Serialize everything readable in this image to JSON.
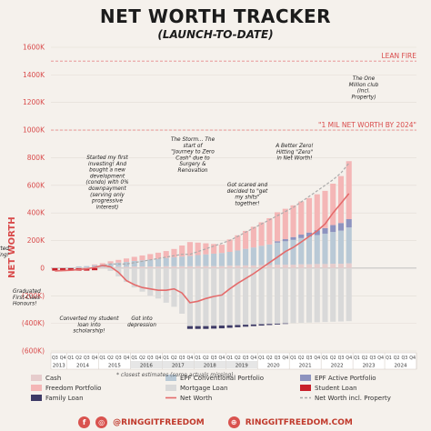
{
  "title": "NET WORTH TRACKER",
  "subtitle": "(LAUNCH-TO-DATE)",
  "footnote": "* closest estimates (some actuals missing)",
  "footer": {
    "handle_left": "@RINGGITFREEDOM",
    "handle_right": "RINGGITFREEDOM.COM"
  },
  "chart_data": {
    "type": "bar",
    "ylabel": "NET WORTH",
    "ylim": [
      -600,
      1600
    ],
    "y_ticks": [
      "(600K)",
      "(400K)",
      "(200K)",
      "0",
      "200K",
      "400K",
      "600K",
      "800K",
      "1000K",
      "1200K",
      "1400K",
      "1600K"
    ],
    "y_tick_values": [
      -600,
      -400,
      -200,
      0,
      200,
      400,
      600,
      800,
      1000,
      1200,
      1400,
      1600
    ],
    "quarters": [
      "Q3",
      "Q4",
      "Q1",
      "Q2",
      "Q3",
      "Q4",
      "Q1",
      "Q2",
      "Q3",
      "Q4",
      "Q1",
      "Q2",
      "Q3",
      "Q4",
      "Q1",
      "Q2",
      "Q3",
      "Q4",
      "Q1",
      "Q2",
      "Q3",
      "Q4",
      "Q1",
      "Q2",
      "Q3",
      "Q4",
      "Q1",
      "Q2",
      "Q3",
      "Q4",
      "Q1",
      "Q2",
      "Q3",
      "Q4",
      "Q1",
      "Q2",
      "Q3",
      "Q4",
      "Q1",
      "Q2",
      "Q3",
      "Q4",
      "Q1",
      "Q2",
      "Q3",
      "Q4"
    ],
    "years": [
      "2013",
      "2014",
      "2015",
      "2016",
      "2017",
      "2018",
      "2019",
      "2020",
      "2021",
      "2022",
      "2023",
      "2024"
    ],
    "year_quarter_counts": [
      2,
      4,
      4,
      4,
      4,
      4,
      4,
      4,
      4,
      4,
      4,
      4
    ],
    "estimate_years": [
      "2016",
      "2017",
      "2018",
      "2019"
    ],
    "reference_lines": [
      {
        "label": "LEAN FIRE",
        "value": 1500
      },
      {
        "label": "\"1 MIL NET WORTH BY 2024\"",
        "value": 1000
      }
    ],
    "series": [
      {
        "name": "Cash",
        "color": "#e6cccc",
        "values": [
          0,
          0,
          0,
          5,
          5,
          8,
          8,
          10,
          10,
          10,
          12,
          12,
          12,
          12,
          14,
          14,
          14,
          14,
          15,
          15,
          15,
          15,
          18,
          18,
          20,
          20,
          22,
          22,
          25,
          25,
          25,
          28,
          28,
          30,
          30,
          32,
          32,
          35,
          null,
          null,
          null,
          null,
          null,
          null,
          null,
          null
        ]
      },
      {
        "name": "Freedom Portfolio",
        "color": "#f4b6b6",
        "values": [
          0,
          0,
          0,
          0,
          0,
          5,
          10,
          15,
          20,
          25,
          30,
          35,
          40,
          45,
          50,
          60,
          80,
          100,
          90,
          80,
          70,
          60,
          90,
          110,
          130,
          150,
          170,
          190,
          210,
          220,
          230,
          240,
          250,
          260,
          270,
          300,
          340,
          420,
          null,
          null,
          null,
          null,
          null,
          null,
          null,
          null
        ]
      },
      {
        "name": "EPF Conventional Portfolio",
        "color": "#b9c9d6",
        "values": [
          0,
          0,
          5,
          8,
          10,
          14,
          18,
          25,
          30,
          35,
          40,
          45,
          50,
          55,
          60,
          65,
          70,
          75,
          80,
          85,
          90,
          95,
          100,
          110,
          120,
          130,
          140,
          150,
          160,
          170,
          180,
          190,
          200,
          210,
          220,
          230,
          240,
          260,
          null,
          null,
          null,
          null,
          null,
          null,
          null,
          null
        ]
      },
      {
        "name": "EPF Active Portfolio",
        "color": "#8d93bf",
        "values": [
          0,
          0,
          0,
          0,
          0,
          0,
          0,
          0,
          0,
          0,
          0,
          0,
          0,
          0,
          0,
          0,
          0,
          0,
          0,
          0,
          0,
          0,
          0,
          0,
          0,
          0,
          0,
          0,
          10,
          15,
          20,
          25,
          30,
          35,
          40,
          50,
          55,
          60,
          null,
          null,
          null,
          null,
          null,
          null,
          null,
          null
        ]
      },
      {
        "name": "Mortgage Loan",
        "color": "#d9d9d9",
        "values": [
          0,
          0,
          0,
          0,
          0,
          0,
          0,
          -20,
          -60,
          -100,
          -140,
          -170,
          -200,
          -220,
          -250,
          -280,
          -330,
          -420,
          -420,
          -420,
          -418,
          -416,
          -414,
          -412,
          -410,
          -408,
          -406,
          -404,
          -402,
          -400,
          -398,
          -396,
          -394,
          -392,
          -390,
          -388,
          -386,
          -384,
          null,
          null,
          null,
          null,
          null,
          null,
          null,
          null
        ]
      },
      {
        "name": "Student Loan",
        "color": "#c8202a",
        "values": [
          -18,
          -18,
          -18,
          -18,
          -18,
          -15,
          0,
          0,
          0,
          0,
          0,
          0,
          0,
          0,
          0,
          0,
          0,
          0,
          0,
          0,
          0,
          0,
          0,
          0,
          0,
          0,
          0,
          0,
          0,
          0,
          0,
          0,
          0,
          0,
          0,
          0,
          0,
          0,
          null,
          null,
          null,
          null,
          null,
          null,
          null,
          null
        ]
      },
      {
        "name": "Family Loan",
        "color": "#3d3a66",
        "values": [
          0,
          0,
          0,
          0,
          0,
          0,
          0,
          0,
          0,
          0,
          0,
          0,
          0,
          0,
          0,
          0,
          0,
          -20,
          -20,
          -20,
          -20,
          -20,
          -18,
          -16,
          -14,
          -12,
          -10,
          -8,
          -6,
          -4,
          0,
          0,
          0,
          0,
          0,
          0,
          0,
          0,
          null,
          null,
          null,
          null,
          null,
          null,
          null,
          null
        ]
      },
      {
        "name": "Net Worth",
        "color": "#e46b6b",
        "values": [
          -20,
          -18,
          -15,
          -10,
          -5,
          5,
          20,
          10,
          -30,
          -90,
          -120,
          -140,
          -150,
          -160,
          -160,
          -150,
          -180,
          -250,
          -240,
          -220,
          -205,
          -195,
          -150,
          -110,
          -75,
          -40,
          0,
          40,
          80,
          120,
          150,
          190,
          230,
          270,
          320,
          400,
          470,
          540,
          null,
          null,
          null,
          null,
          null,
          null,
          null,
          null
        ]
      },
      {
        "name": "Net Worth incl. Property",
        "color": "#aaaaaa",
        "values": [
          -20,
          -18,
          -15,
          -10,
          -5,
          5,
          20,
          30,
          30,
          30,
          40,
          50,
          60,
          70,
          80,
          90,
          100,
          100,
          120,
          140,
          160,
          180,
          200,
          230,
          260,
          290,
          320,
          350,
          380,
          410,
          440,
          480,
          520,
          560,
          600,
          640,
          690,
          760,
          null,
          null,
          null,
          null,
          null,
          null,
          null,
          null
        ]
      }
    ],
    "annotations": [
      {
        "text": "Started working!",
        "q": 0,
        "value": 0
      },
      {
        "text": "Graduated First-Class Honours!",
        "q": 2,
        "value": 0
      },
      {
        "text": "Started my first investing! And bought a new development (condo) with 0% downpayment (serving only progressive interest)",
        "q": 7,
        "value": 0
      },
      {
        "text": "Converted my student loan into scholarship!",
        "q": 6,
        "value": 0
      },
      {
        "text": "Got into depression",
        "q": 11,
        "value": -180
      },
      {
        "text": "The Storm... The start of \"Journey to Zero Cash\" due to Surgery & Renovation",
        "q": 18,
        "value": 230
      },
      {
        "text": "Got scared and decided to \"get my shits\" together!",
        "q": 26,
        "value": 380
      },
      {
        "text": "A Better Zero! Hitting \"Zero\" in Net Worth!",
        "q": 32,
        "value": 480
      },
      {
        "text": "The One Million club (incl. Property)",
        "q": 36,
        "value": 1000
      }
    ]
  },
  "legend": [
    {
      "label": "Cash",
      "color": "#e6cccc",
      "kind": "bar"
    },
    {
      "label": "EPF Conventional Portfolio",
      "color": "#b9c9d6",
      "kind": "bar"
    },
    {
      "label": "EPF Active Portfolio",
      "color": "#8d93bf",
      "kind": "bar"
    },
    {
      "label": "Freedom Portfolio",
      "color": "#f4b6b6",
      "kind": "bar"
    },
    {
      "label": "Mortgage Loan",
      "color": "#d9d9d9",
      "kind": "bar"
    },
    {
      "label": "Student Loan",
      "color": "#c8202a",
      "kind": "bar"
    },
    {
      "label": "Family Loan",
      "color": "#3d3a66",
      "kind": "bar"
    },
    {
      "label": "Net Worth",
      "color": "#e46b6b",
      "kind": "line"
    },
    {
      "label": "Net Worth incl. Property",
      "color": "#aaaaaa",
      "kind": "dash"
    }
  ]
}
